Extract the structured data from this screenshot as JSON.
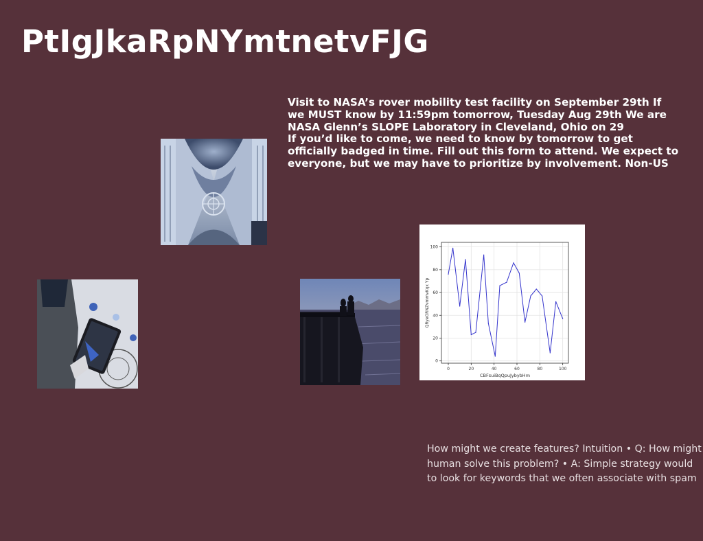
{
  "slide": {
    "title": "PtIgJkaRpNYmtnetvFJG",
    "body_lines": [
      "Visit to NASA’s rover mobility test facility on September 29th If",
      "we MUST know by 11:59pm tomorrow, Tuesday Aug 29th We are",
      "NASA Glenn’s SLOPE Laboratory in Cleveland, Ohio on 29",
      "If you’d like to come, we need to know by tomorrow to get",
      "officially badged in time. Fill out this form to attend. We expect to",
      "everyone, but we may have to prioritize by involvement. Non-US"
    ],
    "caption_lines": [
      "How might we create features? Intuition • Q: How might",
      "human solve this problem? • A: Simple strategy would",
      "to look for keywords that we often associate with spam"
    ],
    "background_color": "#56313a"
  },
  "images": [
    {
      "icon": "cathedral-ceiling-photo"
    },
    {
      "icon": "tablet-drawing-photo"
    },
    {
      "icon": "pier-silhouettes-photo"
    }
  ],
  "chart_data": {
    "type": "line",
    "title": "",
    "xlabel": "CBFsuiBqQpuJybybHm",
    "ylabel": "QRyeGRNZvmmvKqx Yp",
    "xlim": [
      -6,
      105
    ],
    "ylim": [
      -2,
      104
    ],
    "xticks": [
      0,
      20,
      40,
      60,
      80,
      100
    ],
    "yticks": [
      0,
      20,
      40,
      60,
      80,
      100
    ],
    "grid": true,
    "line_color": "#3333cc",
    "x": [
      0,
      4,
      10,
      15,
      20,
      24,
      31,
      35,
      41,
      45,
      51,
      57,
      62,
      67,
      72,
      77,
      82,
      89,
      94,
      100
    ],
    "y": [
      76,
      99,
      48,
      89,
      23,
      25,
      93,
      33,
      4,
      66,
      69,
      86,
      77,
      34,
      57,
      63,
      57,
      7,
      52,
      37
    ]
  }
}
